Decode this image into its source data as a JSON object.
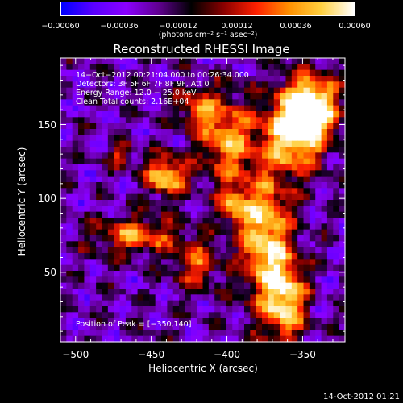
{
  "chart_data": {
    "type": "heatmap",
    "title": "Reconstructed RHESSI Image",
    "xlabel": "Heliocentric X (arcsec)",
    "ylabel": "Heliocentric Y (arcsec)",
    "xlim": [
      -510,
      -322
    ],
    "ylim": [
      3,
      195
    ],
    "x_ticks": [
      -500,
      -450,
      -400,
      -350
    ],
    "x_tick_labels": [
      "−500",
      "−450",
      "−400",
      "−350"
    ],
    "y_ticks": [
      50,
      100,
      150
    ],
    "y_tick_labels": [
      "50",
      "100",
      "150"
    ],
    "colorbar": {
      "ticks": [
        -0.0006,
        -0.00036,
        -0.00012,
        0.00012,
        0.00036,
        0.0006
      ],
      "tick_labels": [
        "−0.00060",
        "−0.00036",
        "−0.00012",
        "0.00012",
        "0.00036",
        "0.00060"
      ],
      "units": "(photons cm⁻² s⁻¹ asec⁻²)",
      "colors": [
        "#0000ff",
        "#5a00ff",
        "#8a00ff",
        "#600090",
        "#000000",
        "#8a0000",
        "#ff2000",
        "#ff9000",
        "#ffd040",
        "#ffffff"
      ]
    },
    "annotations": [
      "14−Oct−2012 00:21:04.000 to 00:26:34.000",
      "Detectors: 3F 5F 6F 7F 8F 9F, Att 0",
      "Energy Range: 12.0 − 25.0 keV",
      "Clean     Total counts: 2.16E+04"
    ],
    "peak_label": "Position of Peak = [−350,140]",
    "sources": [
      {
        "x": -355,
        "y": 145,
        "sx": 14,
        "sy": 18,
        "amp": 1.0
      },
      {
        "x": -343,
        "y": 165,
        "sx": 12,
        "sy": 14,
        "amp": 0.85
      },
      {
        "x": -375,
        "y": 75,
        "sx": 12,
        "sy": 30,
        "amp": 0.85
      },
      {
        "x": -362,
        "y": 30,
        "sx": 10,
        "sy": 20,
        "amp": 0.8
      },
      {
        "x": -400,
        "y": 140,
        "sx": 12,
        "sy": 20,
        "amp": 0.7
      },
      {
        "x": -440,
        "y": 115,
        "sx": 9,
        "sy": 9,
        "amp": 0.9
      },
      {
        "x": -420,
        "y": 160,
        "sx": 8,
        "sy": 10,
        "amp": 0.55
      },
      {
        "x": -460,
        "y": 75,
        "sx": 20,
        "sy": 9,
        "amp": 0.6
      },
      {
        "x": -420,
        "y": 55,
        "sx": 10,
        "sy": 12,
        "amp": 0.5
      },
      {
        "x": -395,
        "y": 95,
        "sx": 7,
        "sy": 8,
        "amp": 0.6
      },
      {
        "x": -470,
        "y": 130,
        "sx": 6,
        "sy": 6,
        "amp": 0.45
      }
    ]
  },
  "footer": {
    "timestamp": "14-Oct-2012 01:21"
  }
}
